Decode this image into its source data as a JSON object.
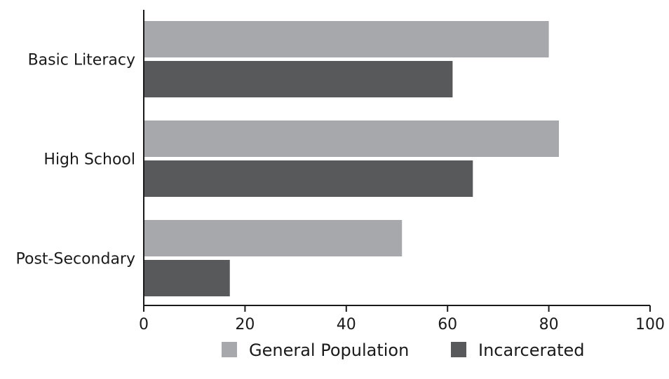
{
  "chart_data": {
    "type": "bar",
    "orientation": "horizontal",
    "categories": [
      "Basic Literacy",
      "High School",
      "Post-Secondary"
    ],
    "series": [
      {
        "name": "General Population",
        "values": [
          80,
          82,
          51
        ],
        "color": "#a7a8ab"
      },
      {
        "name": "Incarcerated",
        "values": [
          61,
          65,
          17
        ],
        "color": "#58595b"
      }
    ],
    "xlim": [
      0,
      100
    ],
    "xticks": [
      0,
      20,
      40,
      60,
      80,
      100
    ],
    "xlabel": "",
    "ylabel": "",
    "title": "",
    "grid": false,
    "legend_position": "bottom"
  }
}
